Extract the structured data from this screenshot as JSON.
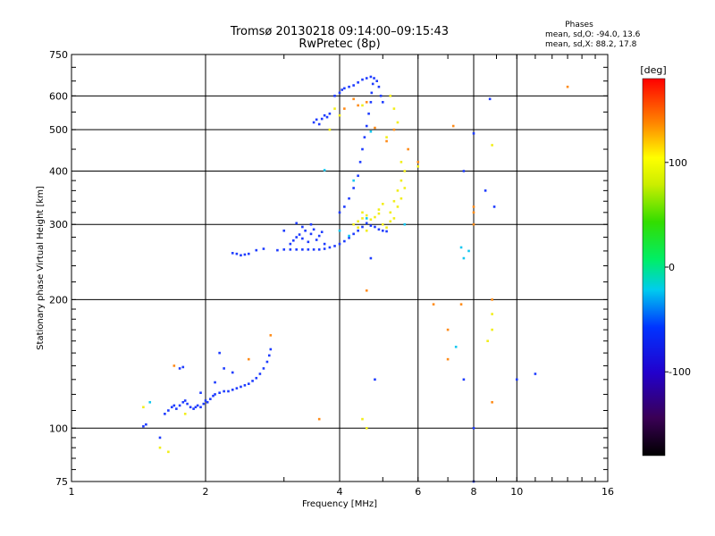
{
  "chart_data": {
    "type": "scatter",
    "title": "Tromsø 20130218 09:14:00–09:15:43",
    "subtitle": "RwPretec (8p)",
    "stats": {
      "heading": "Phases",
      "line1": "mean, sd,O: -94.0, 13.6",
      "line2": "mean, sd,X:  88.2, 17.8"
    },
    "xlabel": "Frequency [MHz]",
    "ylabel": "Stationary phase Virtual Height [km]",
    "xscale": "log2",
    "yscale": "log",
    "xlim": [
      1,
      16
    ],
    "ylim": [
      75,
      750
    ],
    "xticks": [
      1,
      2,
      4,
      6,
      8,
      10,
      16
    ],
    "yticks": [
      75,
      100,
      200,
      300,
      400,
      500,
      600,
      750
    ],
    "grid": true,
    "colorbar": {
      "label": "[deg]",
      "range": [
        -180,
        180
      ],
      "ticks": [
        100,
        0,
        -100
      ]
    },
    "series": [
      {
        "values": [
          [
            1.45,
            101
          ],
          [
            1.47,
            102
          ],
          [
            1.58,
            95
          ],
          [
            1.62,
            108
          ],
          [
            1.65,
            110
          ],
          [
            1.68,
            112
          ],
          [
            1.7,
            113
          ],
          [
            1.72,
            111
          ],
          [
            1.75,
            113
          ],
          [
            1.78,
            115
          ],
          [
            1.8,
            116
          ],
          [
            1.82,
            114
          ],
          [
            1.85,
            112
          ],
          [
            1.88,
            111
          ],
          [
            1.9,
            112
          ],
          [
            1.92,
            113
          ],
          [
            1.95,
            112
          ],
          [
            1.98,
            114
          ],
          [
            2.0,
            116
          ],
          [
            2.02,
            115
          ],
          [
            2.05,
            117
          ],
          [
            2.08,
            119
          ],
          [
            2.1,
            120
          ],
          [
            2.15,
            121
          ],
          [
            2.2,
            122
          ],
          [
            2.25,
            122
          ],
          [
            2.3,
            123
          ],
          [
            2.35,
            124
          ],
          [
            2.4,
            125
          ],
          [
            2.45,
            126
          ],
          [
            2.5,
            127
          ],
          [
            2.55,
            129
          ],
          [
            2.6,
            131
          ],
          [
            2.65,
            134
          ],
          [
            2.7,
            138
          ],
          [
            2.75,
            143
          ],
          [
            2.78,
            148
          ],
          [
            2.8,
            153
          ],
          [
            1.75,
            138
          ],
          [
            1.78,
            139
          ],
          [
            2.15,
            150
          ],
          [
            2.2,
            138
          ],
          [
            2.1,
            128
          ],
          [
            2.3,
            135
          ],
          [
            1.95,
            121
          ],
          [
            2.3,
            257
          ],
          [
            2.35,
            256
          ],
          [
            2.4,
            254
          ],
          [
            2.45,
            255
          ],
          [
            2.5,
            256
          ],
          [
            2.6,
            261
          ],
          [
            2.7,
            263
          ],
          [
            2.9,
            261
          ],
          [
            3.0,
            262
          ],
          [
            3.1,
            262
          ],
          [
            3.2,
            262
          ],
          [
            3.3,
            262
          ],
          [
            3.4,
            262
          ],
          [
            3.5,
            262
          ],
          [
            3.6,
            262
          ],
          [
            3.7,
            263
          ],
          [
            3.8,
            265
          ],
          [
            3.9,
            267
          ],
          [
            4.0,
            270
          ],
          [
            4.1,
            274
          ],
          [
            4.2,
            279
          ],
          [
            4.3,
            285
          ],
          [
            4.4,
            290
          ],
          [
            4.5,
            296
          ],
          [
            3.1,
            270
          ],
          [
            3.15,
            275
          ],
          [
            3.2,
            280
          ],
          [
            3.25,
            284
          ],
          [
            3.3,
            278
          ],
          [
            3.35,
            290
          ],
          [
            3.4,
            273
          ],
          [
            3.45,
            285
          ],
          [
            3.5,
            292
          ],
          [
            3.55,
            276
          ],
          [
            3.6,
            282
          ],
          [
            3.65,
            288
          ],
          [
            3.7,
            270
          ],
          [
            3.3,
            296
          ],
          [
            3.45,
            300
          ],
          [
            3.0,
            290
          ],
          [
            3.2,
            302
          ],
          [
            3.5,
            520
          ],
          [
            3.55,
            528
          ],
          [
            3.6,
            515
          ],
          [
            3.65,
            530
          ],
          [
            3.7,
            540
          ],
          [
            3.75,
            535
          ],
          [
            3.8,
            545
          ],
          [
            3.9,
            600
          ],
          [
            4.0,
            610
          ],
          [
            4.05,
            620
          ],
          [
            4.1,
            625
          ],
          [
            4.2,
            630
          ],
          [
            4.3,
            635
          ],
          [
            4.4,
            645
          ],
          [
            4.5,
            655
          ],
          [
            4.6,
            660
          ],
          [
            4.7,
            665
          ],
          [
            4.0,
            320
          ],
          [
            4.1,
            330
          ],
          [
            4.2,
            345
          ],
          [
            4.3,
            365
          ],
          [
            4.4,
            390
          ],
          [
            4.45,
            420
          ],
          [
            4.5,
            450
          ],
          [
            4.55,
            480
          ],
          [
            4.6,
            510
          ],
          [
            4.65,
            545
          ],
          [
            4.7,
            580
          ],
          [
            4.72,
            610
          ],
          [
            4.75,
            640
          ],
          [
            4.78,
            660
          ],
          [
            4.85,
            650
          ],
          [
            4.9,
            630
          ],
          [
            4.95,
            600
          ],
          [
            5.0,
            580
          ],
          [
            4.6,
            302
          ],
          [
            4.7,
            298
          ],
          [
            4.8,
            296
          ],
          [
            4.9,
            292
          ],
          [
            5.0,
            290
          ],
          [
            5.1,
            289
          ],
          [
            7.6,
            400
          ],
          [
            8.0,
            490
          ],
          [
            8.5,
            360
          ],
          [
            8.9,
            330
          ],
          [
            8.7,
            590
          ],
          [
            10.0,
            130
          ],
          [
            11.0,
            134
          ],
          [
            7.6,
            130
          ],
          [
            8.0,
            100
          ],
          [
            8.0,
            75
          ],
          [
            4.8,
            130
          ],
          [
            4.7,
            250
          ]
        ]
      },
      {
        "values": [
          [
            4.3,
            300
          ],
          [
            4.4,
            305
          ],
          [
            4.5,
            310
          ],
          [
            4.6,
            315
          ],
          [
            4.7,
            308
          ],
          [
            4.8,
            312
          ],
          [
            4.9,
            318
          ],
          [
            5.0,
            300
          ],
          [
            5.1,
            295
          ],
          [
            5.2,
            320
          ],
          [
            5.3,
            340
          ],
          [
            5.4,
            360
          ],
          [
            5.5,
            380
          ],
          [
            5.6,
            365
          ],
          [
            5.5,
            345
          ],
          [
            5.4,
            330
          ],
          [
            5.3,
            310
          ],
          [
            5.2,
            305
          ],
          [
            4.4,
            295
          ],
          [
            4.6,
            290
          ],
          [
            4.5,
            320
          ],
          [
            4.9,
            325
          ],
          [
            5.0,
            335
          ],
          [
            3.9,
            560
          ],
          [
            4.0,
            540
          ],
          [
            4.5,
            570
          ],
          [
            5.2,
            600
          ],
          [
            5.3,
            560
          ],
          [
            5.4,
            520
          ],
          [
            5.1,
            480
          ],
          [
            1.45,
            112
          ],
          [
            1.58,
            90
          ],
          [
            1.65,
            88
          ],
          [
            1.8,
            108
          ],
          [
            4.6,
            100
          ],
          [
            4.5,
            105
          ],
          [
            3.8,
            500
          ],
          [
            5.5,
            420
          ],
          [
            5.6,
            400
          ],
          [
            6.0,
            410
          ],
          [
            8.8,
            460
          ],
          [
            8.8,
            185
          ],
          [
            8.8,
            170
          ],
          [
            8.6,
            160
          ]
        ]
      },
      {
        "values": [
          [
            4.1,
            560
          ],
          [
            4.3,
            590
          ],
          [
            4.4,
            570
          ],
          [
            4.6,
            580
          ],
          [
            4.8,
            505
          ],
          [
            5.1,
            470
          ],
          [
            5.3,
            500
          ],
          [
            5.7,
            450
          ],
          [
            6.0,
            420
          ],
          [
            7.2,
            510
          ],
          [
            8.0,
            300
          ],
          [
            8.0,
            330
          ],
          [
            8.0,
            320
          ],
          [
            13.0,
            630
          ],
          [
            6.5,
            195
          ],
          [
            7.0,
            170
          ],
          [
            7.5,
            195
          ],
          [
            7.0,
            145
          ],
          [
            4.6,
            210
          ],
          [
            3.6,
            105
          ],
          [
            1.7,
            140
          ],
          [
            2.5,
            145
          ],
          [
            2.8,
            165
          ],
          [
            8.8,
            200
          ],
          [
            8.8,
            115
          ]
        ]
      },
      {
        "values": [
          [
            3.7,
            402
          ],
          [
            4.0,
            290
          ],
          [
            4.2,
            282
          ],
          [
            4.6,
            310
          ],
          [
            7.5,
            265
          ],
          [
            7.8,
            260
          ],
          [
            1.5,
            115
          ],
          [
            4.7,
            495
          ],
          [
            5.6,
            300
          ],
          [
            4.3,
            380
          ],
          [
            7.6,
            250
          ],
          [
            7.3,
            155
          ]
        ]
      }
    ]
  }
}
